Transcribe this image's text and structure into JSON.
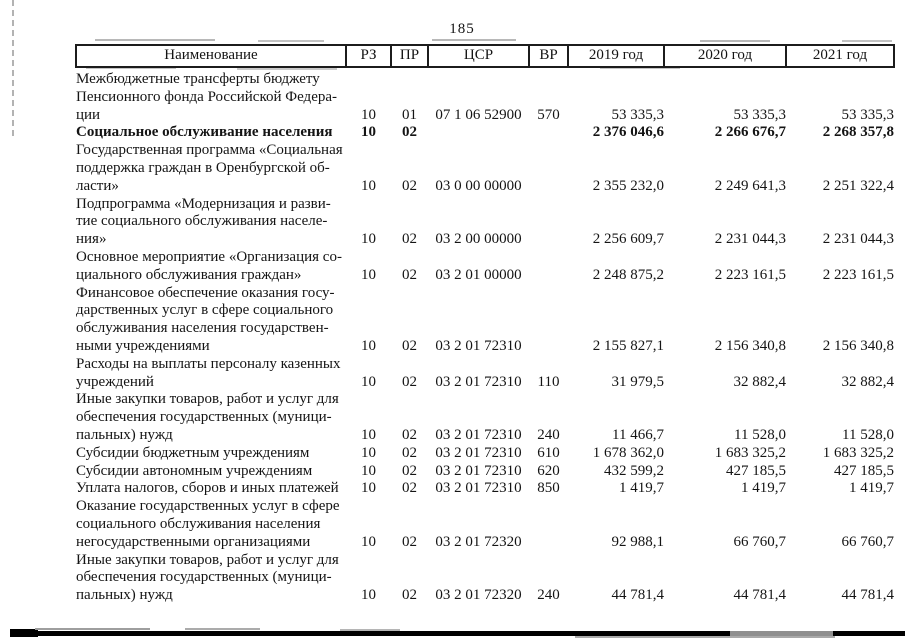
{
  "page": {
    "number": "185"
  },
  "table": {
    "headers": {
      "name": "Наименование",
      "rz": "РЗ",
      "pr": "ПР",
      "csr": "ЦСР",
      "vr": "ВР",
      "y2019": "2019 год",
      "y2020": "2020 год",
      "y2021": "2021 год"
    },
    "rows": [
      {
        "name": "Межбюджетные трансферты бюджету\nПенсионного фонда Российской Федера-\nции",
        "rz": "10",
        "pr": "01",
        "csr": "07 1 06 52900",
        "vr": "570",
        "y2019": "53 335,3",
        "y2020": "53 335,3",
        "y2021": "53 335,3",
        "bold": false
      },
      {
        "name": "Социальное обслуживание населения",
        "rz": "10",
        "pr": "02",
        "csr": "",
        "vr": "",
        "y2019": "2 376 046,6",
        "y2020": "2 266 676,7",
        "y2021": "2 268 357,8",
        "bold": true
      },
      {
        "name": "Государственная программа «Социальная\nподдержка граждан в Оренбургской об-\nласти»",
        "rz": "10",
        "pr": "02",
        "csr": "03 0 00 00000",
        "vr": "",
        "y2019": "2 355 232,0",
        "y2020": "2 249 641,3",
        "y2021": "2 251 322,4",
        "bold": false
      },
      {
        "name": "Подпрограмма «Модернизация и разви-\nтие социального обслуживания населе-\nния»",
        "rz": "10",
        "pr": "02",
        "csr": "03 2 00 00000",
        "vr": "",
        "y2019": "2 256 609,7",
        "y2020": "2 231 044,3",
        "y2021": "2 231 044,3",
        "bold": false
      },
      {
        "name": "Основное мероприятие «Организация со-\nциального обслуживания граждан»",
        "rz": "10",
        "pr": "02",
        "csr": "03 2 01 00000",
        "vr": "",
        "y2019": "2 248 875,2",
        "y2020": "2 223 161,5",
        "y2021": "2 223 161,5",
        "bold": false
      },
      {
        "name": "Финансовое обеспечение оказания госу-\nдарственных услуг в сфере социального\nобслуживания населения государствен-\nными учреждениями",
        "rz": "10",
        "pr": "02",
        "csr": "03 2 01 72310",
        "vr": "",
        "y2019": "2 155 827,1",
        "y2020": "2 156 340,8",
        "y2021": "2 156 340,8",
        "bold": false
      },
      {
        "name": "Расходы на выплаты персоналу казенных\nучреждений",
        "rz": "10",
        "pr": "02",
        "csr": "03 2 01 72310",
        "vr": "110",
        "y2019": "31 979,5",
        "y2020": "32 882,4",
        "y2021": "32 882,4",
        "bold": false
      },
      {
        "name": "Иные закупки товаров, работ и услуг для\nобеспечения государственных (муници-\nпальных) нужд",
        "rz": "10",
        "pr": "02",
        "csr": "03 2 01 72310",
        "vr": "240",
        "y2019": "11 466,7",
        "y2020": "11 528,0",
        "y2021": "11 528,0",
        "bold": false
      },
      {
        "name": "Субсидии бюджетным учреждениям",
        "rz": "10",
        "pr": "02",
        "csr": "03 2 01 72310",
        "vr": "610",
        "y2019": "1 678 362,0",
        "y2020": "1 683 325,2",
        "y2021": "1 683 325,2",
        "bold": false
      },
      {
        "name": "Субсидии автономным учреждениям",
        "rz": "10",
        "pr": "02",
        "csr": "03 2 01 72310",
        "vr": "620",
        "y2019": "432 599,2",
        "y2020": "427 185,5",
        "y2021": "427 185,5",
        "bold": false
      },
      {
        "name": "Уплата налогов, сборов и иных платежей",
        "rz": "10",
        "pr": "02",
        "csr": "03 2 01 72310",
        "vr": "850",
        "y2019": "1 419,7",
        "y2020": "1 419,7",
        "y2021": "1 419,7",
        "bold": false
      },
      {
        "name": "Оказание государственных услуг в сфере\nсоциального обслуживания населения\nнегосударственными организациями",
        "rz": "10",
        "pr": "02",
        "csr": "03 2 01 72320",
        "vr": "",
        "y2019": "92 988,1",
        "y2020": "66 760,7",
        "y2021": "66 760,7",
        "bold": false
      },
      {
        "name": "Иные закупки товаров, работ и услуг для\nобеспечения государственных (муници-\nпальных) нужд",
        "rz": "10",
        "pr": "02",
        "csr": "03 2 01 72320",
        "vr": "240",
        "y2019": "44 781,4",
        "y2020": "44 781,4",
        "y2021": "44 781,4",
        "bold": false
      }
    ]
  }
}
